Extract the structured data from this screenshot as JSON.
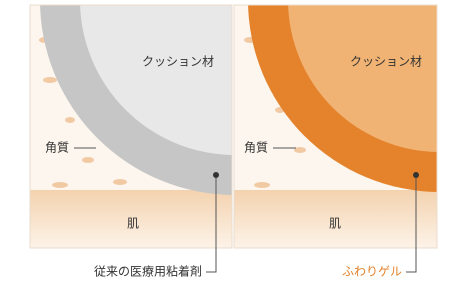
{
  "panels": [
    {
      "cushion": "クッション材",
      "stratum": "角質",
      "skin": "肌",
      "caption": "従来の医療用粘着剤"
    },
    {
      "cushion": "クッション材",
      "stratum": "角質",
      "skin": "肌",
      "caption": "ふわりゲル"
    }
  ]
}
